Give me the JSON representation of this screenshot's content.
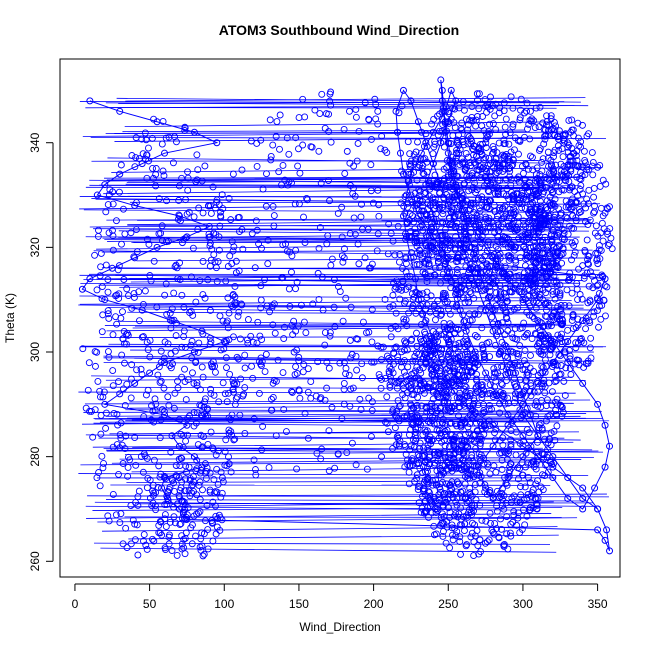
{
  "chart_data": {
    "type": "line",
    "title": "ATOM3 Southbound Wind_Direction",
    "xlabel": "Wind_Direction",
    "ylabel": "Theta (K)",
    "xlim": [
      -10,
      365
    ],
    "ylim": [
      257,
      356
    ],
    "xticks": [
      0,
      50,
      100,
      150,
      200,
      250,
      300,
      350
    ],
    "yticks": [
      260,
      280,
      300,
      320,
      340
    ],
    "grid": false,
    "legend": "none",
    "series_color": "#0000ff",
    "marker": "open-circle",
    "series": [
      {
        "values_described": "dense wind-direction vs theta profile trajectory, points connected by lines",
        "x": [
          10,
          30,
          55,
          80,
          95,
          60,
          45,
          30,
          20,
          15,
          40,
          70,
          90,
          75,
          55,
          40,
          25,
          10,
          5,
          20,
          45,
          65,
          85,
          100,
          80,
          60,
          50,
          40,
          30,
          20,
          60,
          75,
          65,
          70,
          80,
          85,
          60,
          58,
          62,
          70,
          75,
          350,
          355,
          358,
          356,
          350,
          340,
          320,
          300,
          280,
          260,
          250,
          245,
          240,
          235,
          230,
          228,
          225,
          222,
          220,
          222,
          225,
          232,
          240,
          248,
          252,
          255,
          250,
          245,
          240,
          235,
          238,
          242,
          246,
          250,
          255,
          258,
          262,
          268,
          275,
          282,
          290,
          300,
          310,
          320,
          330,
          340,
          348,
          355,
          358,
          355,
          350,
          340,
          330,
          320,
          310,
          300,
          290,
          280,
          270,
          262,
          256,
          252,
          250,
          248,
          247,
          246,
          245,
          246,
          248,
          250,
          252,
          255,
          258,
          262,
          266,
          270,
          275,
          280,
          285,
          290,
          295,
          300,
          305,
          310,
          300,
          290,
          280,
          275,
          270,
          280,
          290,
          300,
          310,
          320,
          330,
          340,
          350,
          355,
          250,
          240,
          230,
          225,
          220,
          218,
          216,
          215,
          220,
          225,
          230,
          235,
          240,
          245,
          250,
          255,
          260,
          265,
          270,
          275,
          280,
          285,
          290,
          295,
          300,
          310,
          320,
          330,
          340,
          350
        ],
        "y": [
          348,
          346,
          344,
          342,
          340,
          338,
          336,
          334,
          332,
          330,
          328,
          326,
          324,
          322,
          320,
          318,
          316,
          314,
          312,
          310,
          308,
          306,
          304,
          302,
          300,
          298,
          296,
          294,
          292,
          290,
          288,
          286,
          284,
          282,
          280,
          278,
          276,
          274,
          272,
          270,
          268,
          266,
          264,
          262,
          266,
          270,
          274,
          278,
          282,
          286,
          290,
          294,
          298,
          302,
          306,
          310,
          314,
          318,
          322,
          326,
          330,
          334,
          338,
          342,
          346,
          350,
          348,
          344,
          340,
          336,
          332,
          328,
          324,
          320,
          316,
          312,
          308,
          304,
          300,
          296,
          292,
          288,
          284,
          280,
          276,
          272,
          270,
          274,
          278,
          282,
          286,
          290,
          294,
          298,
          302,
          306,
          310,
          314,
          318,
          322,
          326,
          330,
          334,
          338,
          342,
          346,
          350,
          352,
          348,
          344,
          340,
          336,
          332,
          328,
          324,
          320,
          316,
          312,
          308,
          304,
          300,
          296,
          292,
          288,
          284,
          280,
          276,
          272,
          274,
          278,
          282,
          286,
          290,
          294,
          298,
          302,
          306,
          310,
          314,
          318,
          322,
          326,
          330,
          334,
          338,
          342,
          346,
          350,
          348,
          344,
          340,
          336,
          332,
          328,
          324,
          320,
          316,
          312,
          308,
          304,
          300,
          296,
          292,
          288,
          284,
          280,
          276,
          272,
          270
        ],
        "note": ""
      }
    ]
  }
}
